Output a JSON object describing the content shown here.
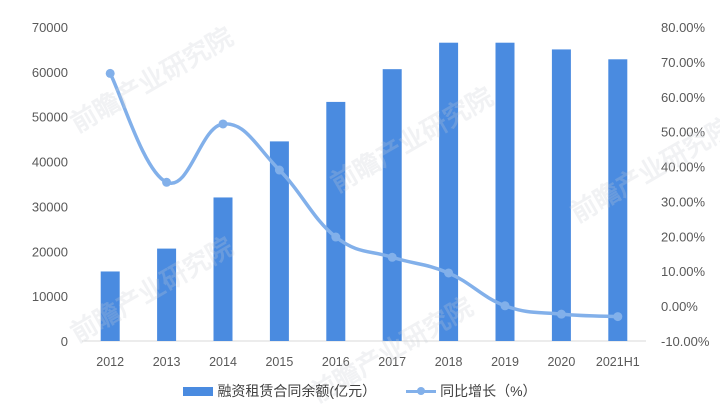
{
  "chart_data": {
    "type": "bar+line",
    "title": "",
    "categories": [
      "2012",
      "2013",
      "2014",
      "2015",
      "2016",
      "2017",
      "2018",
      "2019",
      "2020",
      "2021H1"
    ],
    "series": [
      {
        "name": "融资租赁合同余额(亿元）",
        "type": "bar",
        "axis": "left",
        "color": "#4a8be0",
        "values": [
          15500,
          20600,
          32000,
          44500,
          53300,
          60600,
          66500,
          66500,
          65000,
          62800
        ]
      },
      {
        "name": "同比增长（%）",
        "type": "line",
        "axis": "right",
        "color": "#82b0ea",
        "values": [
          66.7,
          35.5,
          52.2,
          39.0,
          19.8,
          14.0,
          9.5,
          0.1,
          -2.3,
          -3.0
        ]
      }
    ],
    "left_axis": {
      "ylim": [
        0,
        70000
      ],
      "ticks": [
        "0",
        "10000",
        "20000",
        "30000",
        "40000",
        "50000",
        "60000",
        "70000"
      ]
    },
    "right_axis": {
      "ylim": [
        -10,
        80
      ],
      "ticks": [
        "-10.00%",
        "0.00%",
        "10.00%",
        "20.00%",
        "30.00%",
        "40.00%",
        "50.00%",
        "60.00%",
        "70.00%",
        "80.00%"
      ]
    },
    "xlabel": "",
    "ylabel": "",
    "grid": false,
    "legend_position": "bottom"
  },
  "legend": {
    "bar_label": "融资租赁合同余额(亿元）",
    "line_label": "同比增长（%）"
  },
  "watermark": "前瞻产业研究院"
}
